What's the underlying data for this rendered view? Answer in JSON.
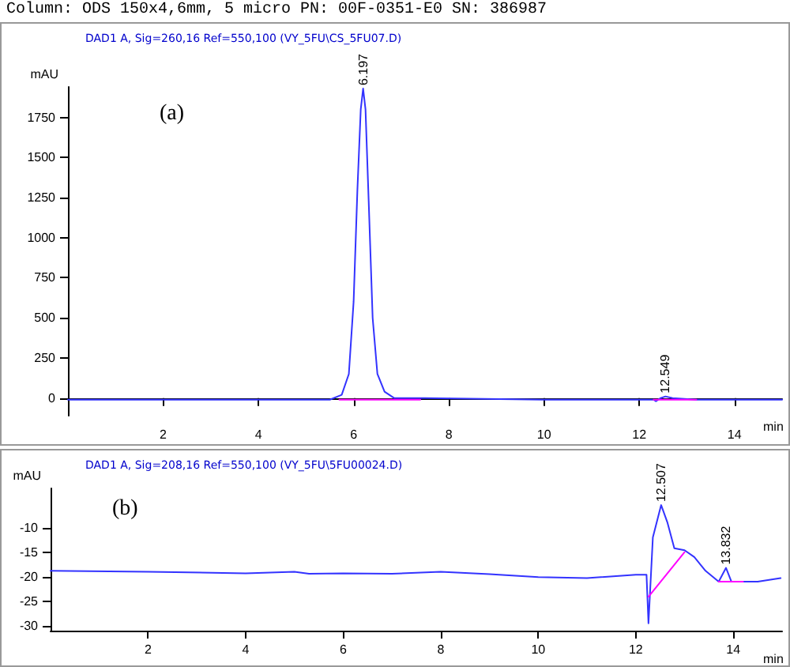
{
  "chart_data": [
    {
      "type": "line",
      "title": "DAD1 A, Sig=260,16 Ref=550,100 (VY_5FU\\CS_5FU07.D)",
      "xlabel": "min",
      "ylabel": "mAU",
      "annotations": [
        "Column: ODS 150x4,6mm, 5 micro  PN: 00F-0351-E0  SN: 386987",
        "(a)",
        {
          "text": "6.197",
          "x": 6.2,
          "y": 1930
        },
        {
          "text": "12.549",
          "x": 12.55,
          "y": 10
        }
      ],
      "xlim": [
        0,
        15
      ],
      "xticks": [
        2,
        4,
        6,
        8,
        10,
        12,
        14
      ],
      "ylim": [
        -110,
        1940
      ],
      "yticks": [
        0,
        250,
        500,
        750,
        1000,
        1250,
        1500,
        1750
      ],
      "grid": false,
      "marker": "none",
      "line_style": "solid",
      "series": [
        {
          "color": "#3333ff",
          "x": [
            0,
            2,
            4,
            5.5,
            5.75,
            5.9,
            6.0,
            6.08,
            6.15,
            6.2,
            6.25,
            6.32,
            6.4,
            6.5,
            6.65,
            6.85,
            7.5,
            10,
            12.3,
            12.35,
            12.45,
            12.55,
            12.7,
            13.2,
            15
          ],
          "values": [
            -10,
            -10,
            -10,
            -10,
            20,
            150,
            600,
            1300,
            1800,
            1930,
            1800,
            1200,
            500,
            150,
            40,
            0,
            0,
            -10,
            -10,
            -20,
            0,
            10,
            0,
            -10,
            -10
          ]
        },
        {
          "color": "#ff00ff",
          "x": [
            5.7,
            7.4
          ],
          "values": [
            -10,
            -10
          ]
        },
        {
          "color": "#ff00ff",
          "x": [
            12.3,
            13.2
          ],
          "values": [
            -10,
            -10
          ]
        }
      ]
    },
    {
      "type": "line",
      "title": "DAD1 A, Sig=208,16 Ref=550,100 (VY_5FU\\5FU00024.D)",
      "xlabel": "min",
      "ylabel": "mAU",
      "annotations": [
        "(b)",
        {
          "text": "12.507",
          "x": 12.52,
          "y": -5.4
        },
        {
          "text": "13.832",
          "x": 13.85,
          "y": -18.2
        }
      ],
      "xlim": [
        0,
        15
      ],
      "xticks": [
        2,
        4,
        6,
        8,
        10,
        12,
        14
      ],
      "ylim": [
        -31,
        -2
      ],
      "yticks": [
        -30,
        -25,
        -20,
        -15,
        -10
      ],
      "grid": false,
      "marker": "none",
      "line_style": "solid",
      "series": [
        {
          "color": "#3333ff",
          "x": [
            0,
            2,
            4,
            5,
            5.3,
            6,
            7,
            8,
            9,
            10,
            11,
            12,
            12.22,
            12.26,
            12.35,
            12.52,
            12.65,
            12.79,
            13.0,
            13.2,
            13.43,
            13.7,
            13.85,
            13.96,
            14.5,
            14.97
          ],
          "values": [
            -18.8,
            -19,
            -19.3,
            -19,
            -19.4,
            -19.3,
            -19.4,
            -19,
            -19.5,
            -20.1,
            -20.3,
            -19.6,
            -19.6,
            -29.5,
            -12,
            -5.4,
            -9,
            -14.2,
            -14.6,
            -16,
            -18.8,
            -21,
            -18.2,
            -21,
            -21,
            -20.3
          ]
        },
        {
          "color": "#ff00ff",
          "x": [
            12.26,
            13.0
          ],
          "values": [
            -24.1,
            -15
          ]
        },
        {
          "color": "#ff00ff",
          "x": [
            13.7,
            14.2
          ],
          "values": [
            -21,
            -21
          ]
        }
      ]
    }
  ]
}
